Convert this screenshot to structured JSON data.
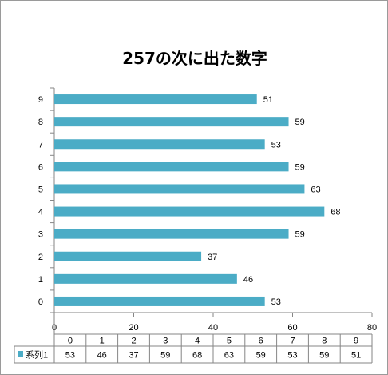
{
  "chart_data": {
    "type": "bar",
    "orientation": "horizontal",
    "title": "257の次に出た数字",
    "categories": [
      "0",
      "1",
      "2",
      "3",
      "4",
      "5",
      "6",
      "7",
      "8",
      "9"
    ],
    "series": [
      {
        "name": "系列1",
        "values": [
          53,
          46,
          37,
          59,
          68,
          63,
          59,
          53,
          59,
          51
        ]
      }
    ],
    "xlim": [
      0,
      80
    ],
    "x_ticks": [
      "0",
      "20",
      "40",
      "60",
      "80"
    ],
    "grid": false,
    "legend": "data-table",
    "data_table": true,
    "bar_color": "#4bacc6"
  }
}
